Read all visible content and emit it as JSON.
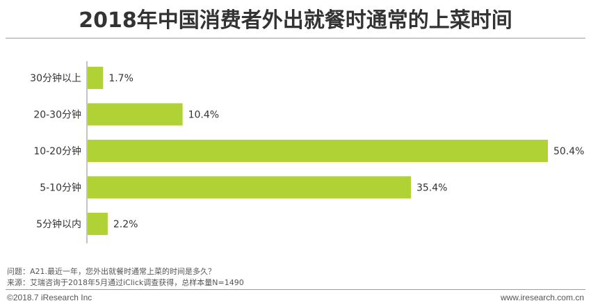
{
  "chart_data": {
    "type": "bar",
    "orientation": "horizontal",
    "title": "2018年中国消费者外出就餐时通常的上菜时间",
    "categories": [
      "30分钟以上",
      "20-30分钟",
      "10-20分钟",
      "5-10分钟",
      "5分钟以内"
    ],
    "values": [
      1.7,
      10.4,
      50.4,
      35.4,
      2.2
    ],
    "value_labels": [
      "1.7%",
      "10.4%",
      "50.4%",
      "35.4%",
      "2.2%"
    ],
    "xlim": [
      0,
      50.4
    ],
    "grid": false,
    "bar_color": "#b0d235"
  },
  "notes": {
    "question": "问题：A21.最近一年，您外出就餐时通常上菜的时间是多久？",
    "source": "来源：艾瑞咨询于2018年5月通过iClick调查获得，总样本量N=1490"
  },
  "footer": {
    "copyright": "©2018.7 iResearch  Inc",
    "website": "www.iresearch.com.cn"
  }
}
